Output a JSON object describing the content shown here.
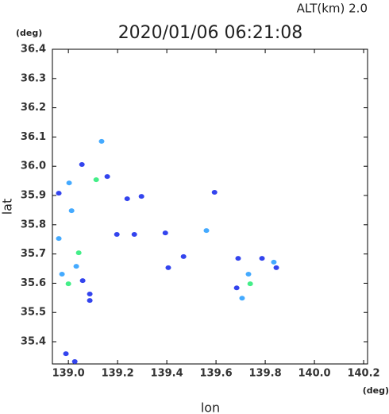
{
  "chart_data": {
    "type": "scatter",
    "title": "2020/01/06 06:21:08",
    "subtitle": "ALT(km) 2.0",
    "x_label": "lon",
    "y_label": "lat",
    "x_unit": "(deg)",
    "y_unit": "(deg)",
    "xlim": [
      138.935,
      140.216
    ],
    "ylim": [
      35.324,
      36.4
    ],
    "xticks": [
      {
        "value": 139,
        "label": "139.0"
      },
      139.2,
      139.4,
      139.6,
      139.8,
      {
        "value": 140,
        "label": "140.0"
      },
      140.2
    ],
    "yticks": [
      35.4,
      35.5,
      35.6,
      35.7,
      35.8,
      35.9,
      {
        "value": 36,
        "label": "36.0"
      },
      36.1,
      36.2,
      36.3,
      36.4
    ],
    "series": [
      {
        "color": "#3344ee",
        "x": [
          139.055,
          138.961,
          139.158,
          139.239,
          139.297,
          139.197,
          139.268,
          139.058,
          139.087,
          139.087,
          139.406,
          139.69,
          139.787,
          139.845,
          139.684,
          138.99,
          139.026,
          139.594,
          139.394,
          139.468
        ],
        "y": [
          36.006,
          35.908,
          35.965,
          35.889,
          35.897,
          35.767,
          35.767,
          35.609,
          35.563,
          35.541,
          35.653,
          35.685,
          35.685,
          35.653,
          35.584,
          35.359,
          35.332,
          35.911,
          35.772,
          35.691
        ]
      },
      {
        "color": "#44aaff",
        "x": [
          139.003,
          139.013,
          138.961,
          139.032,
          138.974,
          139.835,
          139.732,
          139.706,
          139.135,
          139.561
        ],
        "y": [
          35.943,
          35.848,
          35.753,
          35.658,
          35.631,
          35.672,
          35.631,
          35.549,
          36.085,
          35.78
        ]
      },
      {
        "color": "#44ee88",
        "x": [
          139.113,
          139.042,
          139.0,
          139.739
        ],
        "y": [
          35.954,
          35.704,
          35.598,
          35.598
        ]
      }
    ]
  }
}
